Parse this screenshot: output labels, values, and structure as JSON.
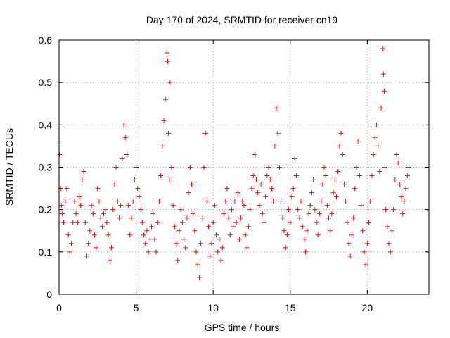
{
  "chart_data": {
    "type": "scatter",
    "title": "Day 170 of 2024, SRMTID for receiver cn19",
    "xlabel": "GPS time / hours",
    "ylabel": "SRMTID / TECUs",
    "xlim": [
      0,
      24
    ],
    "ylim": [
      0,
      0.6
    ],
    "xticks": [
      0,
      5,
      10,
      15,
      20
    ],
    "yticks": [
      0,
      0.1,
      0.2,
      0.3,
      0.4,
      0.5,
      0.6
    ],
    "xtick_labels": [
      "0",
      "5",
      "10",
      "15",
      "20"
    ],
    "ytick_labels": [
      "0",
      "0.1",
      "0.2",
      "0.3",
      "0.4",
      "0.5",
      "0.6"
    ],
    "grid": true,
    "marker": "+",
    "color": "#ff0000",
    "series": [
      {
        "name": "SRMTID",
        "x": [
          0.0,
          0.05,
          0.1,
          0.15,
          0.2,
          0.3,
          0.4,
          0.5,
          0.6,
          0.7,
          0.8,
          0.9,
          1.0,
          1.1,
          1.2,
          1.3,
          1.4,
          1.5,
          1.6,
          1.7,
          1.8,
          1.9,
          2.0,
          2.1,
          2.2,
          2.3,
          2.4,
          2.5,
          2.6,
          2.7,
          2.8,
          2.9,
          3.0,
          3.1,
          3.2,
          3.3,
          3.4,
          3.5,
          3.6,
          3.7,
          3.8,
          3.9,
          4.0,
          4.1,
          4.2,
          4.3,
          4.4,
          4.5,
          4.6,
          4.7,
          4.8,
          4.9,
          5.0,
          5.1,
          5.2,
          5.3,
          5.4,
          5.5,
          5.6,
          5.7,
          5.8,
          5.9,
          6.0,
          6.1,
          6.2,
          6.3,
          6.4,
          6.5,
          6.6,
          6.7,
          6.8,
          6.9,
          7.0,
          7.05,
          7.1,
          7.15,
          7.2,
          7.3,
          7.4,
          7.5,
          7.6,
          7.7,
          7.8,
          7.9,
          8.0,
          8.1,
          8.2,
          8.3,
          8.4,
          8.5,
          8.6,
          8.7,
          8.8,
          8.9,
          9.0,
          9.1,
          9.2,
          9.3,
          9.4,
          9.5,
          9.6,
          9.7,
          9.8,
          9.9,
          10.0,
          10.1,
          10.2,
          10.3,
          10.4,
          10.5,
          10.6,
          10.7,
          10.8,
          10.9,
          11.0,
          11.1,
          11.2,
          11.3,
          11.4,
          11.5,
          11.6,
          11.7,
          11.8,
          11.9,
          12.0,
          12.1,
          12.2,
          12.3,
          12.4,
          12.5,
          12.6,
          12.7,
          12.8,
          12.9,
          13.0,
          13.1,
          13.2,
          13.3,
          13.4,
          13.5,
          13.6,
          13.7,
          13.8,
          13.9,
          14.0,
          14.1,
          14.2,
          14.3,
          14.4,
          14.5,
          14.6,
          14.7,
          14.8,
          14.9,
          15.0,
          15.1,
          15.2,
          15.3,
          15.4,
          15.5,
          15.6,
          15.7,
          15.8,
          15.9,
          16.0,
          16.1,
          16.2,
          16.3,
          16.4,
          16.5,
          16.6,
          16.7,
          16.8,
          16.9,
          17.0,
          17.1,
          17.2,
          17.3,
          17.4,
          17.5,
          17.6,
          17.7,
          17.8,
          17.9,
          18.0,
          18.1,
          18.2,
          18.3,
          18.4,
          18.5,
          18.6,
          18.7,
          18.8,
          18.9,
          19.0,
          19.1,
          19.2,
          19.3,
          19.4,
          19.5,
          19.6,
          19.7,
          19.8,
          19.9,
          20.0,
          20.1,
          20.2,
          20.3,
          20.4,
          20.5,
          20.6,
          20.7,
          20.8,
          20.9,
          21.0,
          21.05,
          21.1,
          21.15,
          21.2,
          21.3,
          21.4,
          21.5,
          21.6,
          21.7,
          21.8,
          21.9,
          22.0,
          22.1,
          22.2,
          22.3,
          22.4,
          22.5,
          22.6,
          22.7
        ],
        "y": [
          0.36,
          0.33,
          0.25,
          0.21,
          0.19,
          0.17,
          0.22,
          0.25,
          0.14,
          0.1,
          0.12,
          0.17,
          0.22,
          0.19,
          0.17,
          0.23,
          0.21,
          0.27,
          0.29,
          0.17,
          0.09,
          0.12,
          0.15,
          0.21,
          0.19,
          0.14,
          0.11,
          0.25,
          0.22,
          0.18,
          0.16,
          0.19,
          0.2,
          0.17,
          0.14,
          0.08,
          0.11,
          0.2,
          0.26,
          0.3,
          0.22,
          0.18,
          0.21,
          0.32,
          0.4,
          0.37,
          0.33,
          0.21,
          0.14,
          0.18,
          0.22,
          0.27,
          0.3,
          0.25,
          0.23,
          0.2,
          0.17,
          0.14,
          0.12,
          0.15,
          0.1,
          0.13,
          0.16,
          0.19,
          0.13,
          0.1,
          0.17,
          0.22,
          0.28,
          0.35,
          0.41,
          0.46,
          0.57,
          0.55,
          0.38,
          0.27,
          0.5,
          0.3,
          0.21,
          0.16,
          0.12,
          0.08,
          0.15,
          0.2,
          0.17,
          0.13,
          0.11,
          0.18,
          0.24,
          0.3,
          0.26,
          0.19,
          0.15,
          0.1,
          0.07,
          0.04,
          0.12,
          0.18,
          0.3,
          0.38,
          0.22,
          0.16,
          0.09,
          0.12,
          0.17,
          0.21,
          0.14,
          0.1,
          0.13,
          0.08,
          0.11,
          0.19,
          0.22,
          0.25,
          0.18,
          0.14,
          0.2,
          0.16,
          0.22,
          0.17,
          0.24,
          0.13,
          0.18,
          0.22,
          0.21,
          0.14,
          0.11,
          0.16,
          0.2,
          0.25,
          0.28,
          0.33,
          0.27,
          0.24,
          0.21,
          0.26,
          0.19,
          0.17,
          0.23,
          0.28,
          0.3,
          0.27,
          0.25,
          0.22,
          0.35,
          0.44,
          0.38,
          0.3,
          0.22,
          0.18,
          0.15,
          0.11,
          0.14,
          0.2,
          0.17,
          0.23,
          0.25,
          0.32,
          0.28,
          0.2,
          0.18,
          0.22,
          0.16,
          0.13,
          0.1,
          0.15,
          0.19,
          0.21,
          0.24,
          0.27,
          0.2,
          0.17,
          0.14,
          0.19,
          0.22,
          0.26,
          0.3,
          0.28,
          0.21,
          0.18,
          0.15,
          0.19,
          0.24,
          0.27,
          0.23,
          0.29,
          0.35,
          0.38,
          0.33,
          0.26,
          0.22,
          0.17,
          0.12,
          0.09,
          0.14,
          0.18,
          0.25,
          0.3,
          0.36,
          0.28,
          0.21,
          0.15,
          0.1,
          0.07,
          0.12,
          0.17,
          0.22,
          0.28,
          0.33,
          0.37,
          0.4,
          0.35,
          0.29,
          0.44,
          0.58,
          0.52,
          0.48,
          0.3,
          0.2,
          0.16,
          0.12,
          0.1,
          0.15,
          0.2,
          0.27,
          0.33,
          0.31,
          0.26,
          0.23,
          0.19,
          0.22,
          0.25,
          0.28,
          0.3
        ]
      }
    ]
  }
}
